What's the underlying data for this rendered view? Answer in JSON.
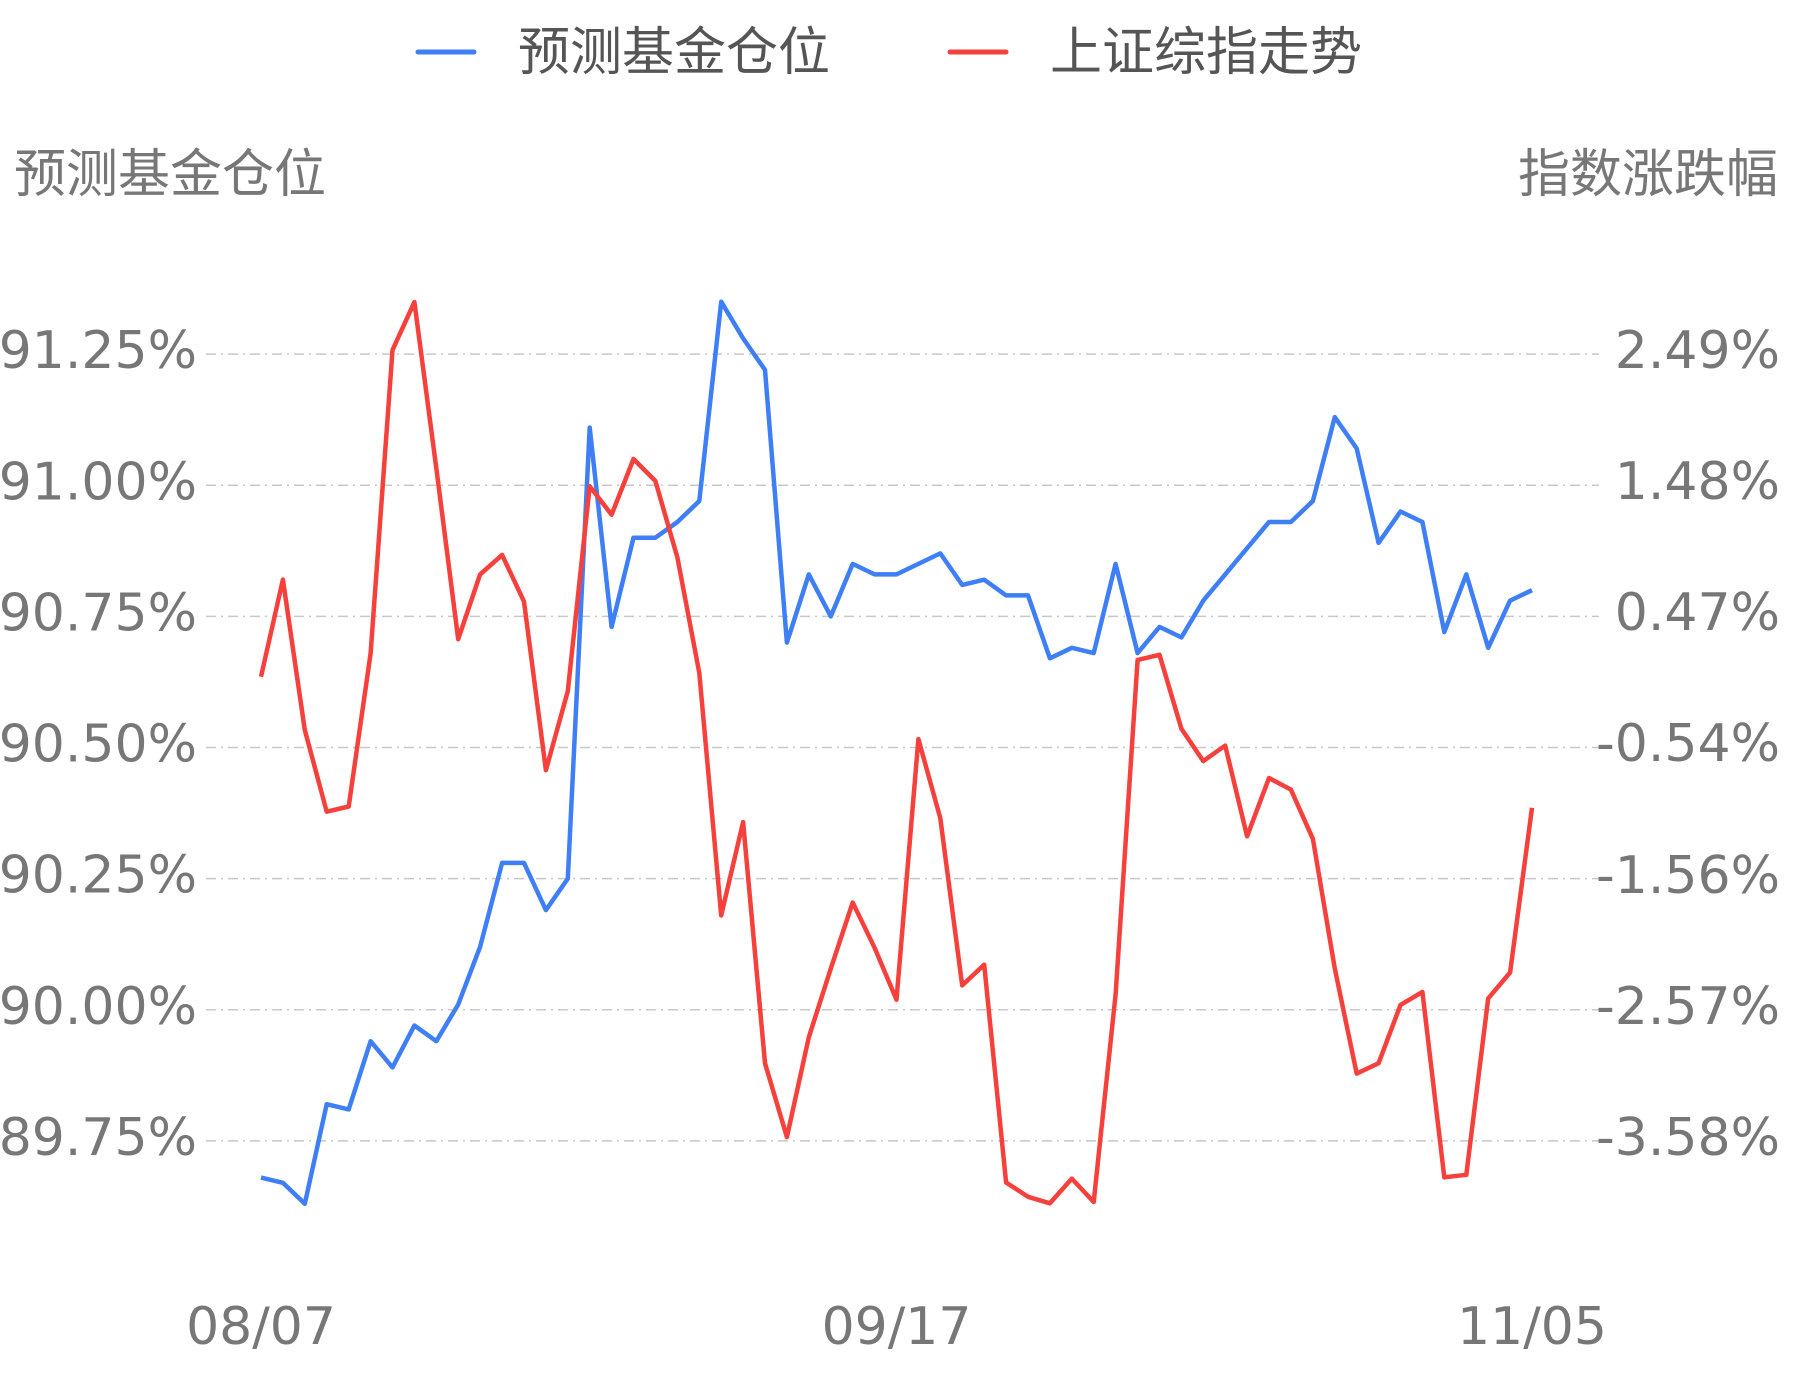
{
  "chart_data": {
    "type": "line",
    "y_label": "预测基金仓位",
    "y2_label": "指数涨跌幅",
    "categories": [
      "08/07",
      null,
      null,
      null,
      null,
      null,
      null,
      null,
      null,
      null,
      null,
      null,
      null,
      null,
      null,
      null,
      null,
      null,
      null,
      null,
      null,
      null,
      null,
      null,
      null,
      null,
      null,
      null,
      null,
      "09/17",
      null,
      null,
      null,
      null,
      null,
      null,
      null,
      null,
      null,
      null,
      null,
      null,
      null,
      null,
      null,
      null,
      null,
      null,
      null,
      null,
      null,
      null,
      null,
      null,
      null,
      null,
      null,
      null,
      "11/05"
    ],
    "series": [
      {
        "name": "预测基金仓位",
        "color": "#3f7ff5",
        "axis": "y",
        "values": [
          89.68,
          89.67,
          89.63,
          89.82,
          89.81,
          89.94,
          89.89,
          89.97,
          89.94,
          90.01,
          90.12,
          90.28,
          90.28,
          90.19,
          90.25,
          91.11,
          90.73,
          90.9,
          90.9,
          90.93,
          90.97,
          91.35,
          91.28,
          91.22,
          90.7,
          90.83,
          90.75,
          90.85,
          90.83,
          90.83,
          90.85,
          90.87,
          90.81,
          90.82,
          90.79,
          90.79,
          90.67,
          90.69,
          90.68,
          90.85,
          90.68,
          90.73,
          90.71,
          90.78,
          90.83,
          90.88,
          90.93,
          90.93,
          90.97,
          91.13,
          91.07,
          90.89,
          90.95,
          90.93,
          90.72,
          90.83,
          90.69,
          90.78,
          90.8
        ]
      },
      {
        "name": "上证综指走势",
        "color": "#f5403c",
        "axis": "y2",
        "values": [
          0.0,
          0.75,
          -0.41,
          -1.04,
          -1.0,
          0.18,
          2.52,
          2.89,
          1.61,
          0.29,
          0.79,
          0.94,
          0.58,
          -0.72,
          -0.11,
          1.47,
          1.25,
          1.68,
          1.51,
          0.92,
          0.03,
          -1.84,
          -1.12,
          -2.98,
          -3.55,
          -2.78,
          -2.25,
          -1.74,
          -2.09,
          -2.49,
          -0.48,
          -1.09,
          -2.38,
          -2.22,
          -3.9,
          -4.01,
          -4.06,
          -3.87,
          -4.05,
          -2.45,
          0.13,
          0.17,
          -0.4,
          -0.65,
          -0.53,
          -1.23,
          -0.78,
          -0.87,
          -1.25,
          -2.25,
          -3.06,
          -2.98,
          -2.53,
          -2.43,
          -3.86,
          -3.84,
          -2.48,
          -2.28,
          -1.01
        ]
      }
    ],
    "ylim": [
      89.5,
      91.5
    ],
    "yticks": [
      {
        "value": 89.75,
        "label": "89.75%"
      },
      {
        "value": 90.0,
        "label": "90.00%"
      },
      {
        "value": 90.25,
        "label": "90.25%"
      },
      {
        "value": 90.5,
        "label": "90.50%"
      },
      {
        "value": 90.75,
        "label": "90.75%"
      },
      {
        "value": 91.0,
        "label": "91.00%"
      },
      {
        "value": 91.25,
        "label": "91.25%"
      }
    ],
    "y2lim": [
      -4.59,
      3.5
    ],
    "y2ticks": [
      {
        "value": -3.58,
        "label": "-3.58%"
      },
      {
        "value": -2.57,
        "label": "-2.57%"
      },
      {
        "value": -1.56,
        "label": "-1.56%"
      },
      {
        "value": -0.54,
        "label": "-0.54%"
      },
      {
        "value": 0.47,
        "label": "0.47%"
      },
      {
        "value": 1.48,
        "label": "1.48%"
      },
      {
        "value": 2.49,
        "label": "2.49%"
      }
    ],
    "grid": true
  }
}
